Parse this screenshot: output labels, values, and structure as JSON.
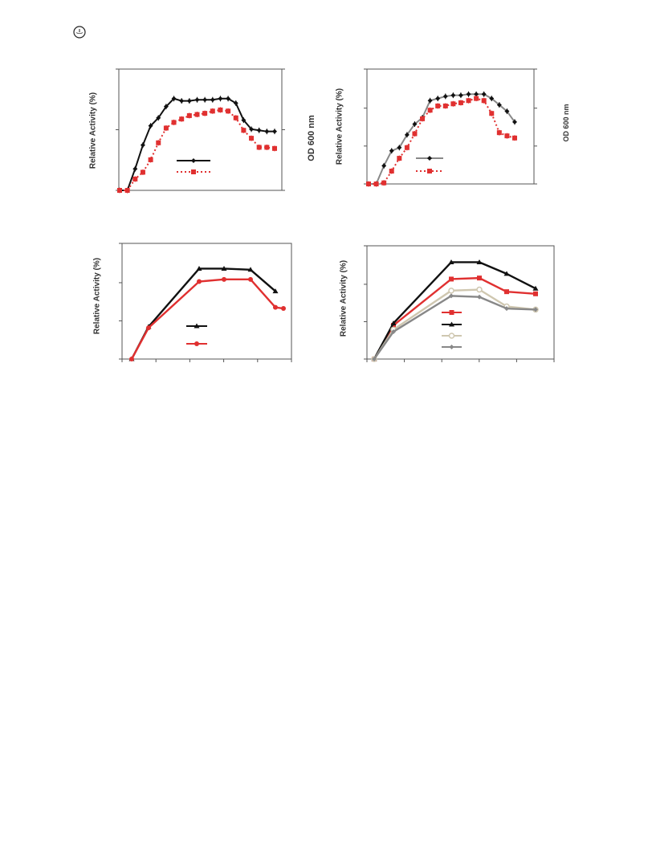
{
  "page": {
    "logo_name": "publisher-logo-icon"
  },
  "chart_data": [
    {
      "type": "line",
      "title": "",
      "ylabel": "Relative Activity (%)",
      "ylabel_right": "OD 600 nm",
      "xlabel": "",
      "error_bars": true,
      "grid": false,
      "legend_position": "center-right",
      "series": [
        {
          "name": "",
          "color": "#111111",
          "dash": "solid",
          "marker": "diamond",
          "values": [
            0,
            0,
            19,
            40,
            57,
            64,
            74,
            81,
            79,
            79,
            80,
            80,
            80,
            81,
            81,
            77,
            62,
            54,
            53,
            52,
            52
          ]
        },
        {
          "name": "",
          "color": "#e03030",
          "dash": "dotted",
          "marker": "square",
          "values": [
            0,
            0,
            10,
            16,
            27,
            42,
            55,
            60,
            63,
            66,
            67,
            68,
            70,
            71,
            70,
            64,
            53,
            46,
            38,
            38,
            37
          ]
        }
      ]
    },
    {
      "type": "line",
      "title": "",
      "ylabel": "Relative Activity (%)",
      "ylabel_right": "OD 600 nm",
      "xlabel": "",
      "error_bars": true,
      "grid": false,
      "legend_position": "center-right",
      "series": [
        {
          "name": "",
          "color": "#111111",
          "dash": "solid",
          "marker": "diamond",
          "line_color": "#888888",
          "values": [
            0,
            0,
            17,
            31,
            34,
            46,
            56,
            62,
            78,
            80,
            82,
            83,
            83,
            84,
            84,
            84,
            80,
            74,
            68,
            58
          ]
        },
        {
          "name": "",
          "color": "#e03030",
          "dash": "dotted",
          "marker": "square",
          "values": [
            0,
            0,
            1,
            12,
            24,
            34,
            47,
            61,
            69,
            73,
            73,
            75,
            76,
            78,
            80,
            78,
            66,
            48,
            45,
            43
          ]
        }
      ]
    },
    {
      "type": "line",
      "title": "",
      "ylabel": "Relative Activity (%)",
      "xlabel": "",
      "grid": false,
      "legend_position": "center",
      "series": [
        {
          "name": "",
          "color": "#111111",
          "marker": "triangle",
          "values": [
            0,
            30,
            84,
            84,
            83,
            63
          ]
        },
        {
          "name": "",
          "color": "#e03030",
          "marker": "circle",
          "values": [
            0,
            29,
            72,
            74,
            74,
            48,
            47
          ]
        }
      ]
    },
    {
      "type": "line",
      "title": "",
      "ylabel": "Relative Activity (%)",
      "xlabel": "",
      "grid": false,
      "legend_position": "center",
      "series": [
        {
          "name": "",
          "color": "#e03030",
          "marker": "square",
          "values": [
            0,
            32,
            76,
            77,
            64,
            62
          ]
        },
        {
          "name": "",
          "color": "#111111",
          "marker": "triangle",
          "values": [
            0,
            34,
            92,
            92,
            81,
            67
          ]
        },
        {
          "name": "",
          "color": "#cfc7b0",
          "marker": "circle-open",
          "values": [
            0,
            28,
            65,
            66,
            50,
            47
          ]
        },
        {
          "name": "",
          "color": "#888888",
          "marker": "diamond",
          "values": [
            0,
            26,
            60,
            59,
            48,
            47
          ]
        }
      ]
    }
  ]
}
